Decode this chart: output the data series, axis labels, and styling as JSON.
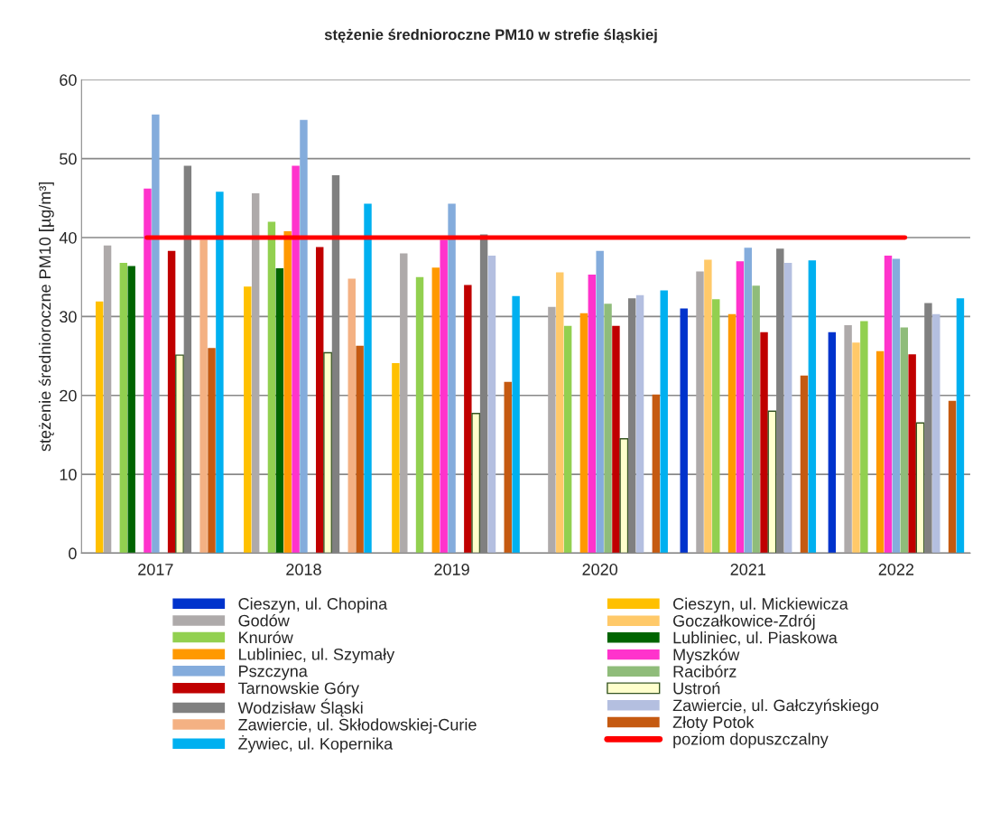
{
  "chart_data": {
    "type": "bar",
    "title": "stężenie średnioroczne PM10 w strefie śląskiej",
    "ylabel": "stężenie średnioroczne PM10 [µg/m³]",
    "categories": [
      "2017",
      "2018",
      "2019",
      "2020",
      "2021",
      "2022"
    ],
    "ylim": [
      0,
      60
    ],
    "yticks": [
      0,
      10,
      20,
      30,
      40,
      50,
      60
    ],
    "grid": "y",
    "legend": "bottom",
    "series": [
      {
        "name": "Cieszyn, ul. Chopina",
        "color": "#0033cc",
        "values": [
          null,
          null,
          null,
          null,
          31.0,
          28.0
        ]
      },
      {
        "name": "Cieszyn, ul. Mickiewicza",
        "color": "#ffc000",
        "values": [
          31.9,
          33.8,
          24.1,
          null,
          null,
          null
        ]
      },
      {
        "name": "Godów",
        "color": "#aeaaaa",
        "values": [
          39.0,
          45.6,
          38.0,
          31.2,
          35.7,
          28.9
        ]
      },
      {
        "name": "Goczałkowice-Zdrój",
        "color": "#ffc969",
        "values": [
          null,
          null,
          null,
          35.6,
          37.2,
          26.7
        ]
      },
      {
        "name": "Knurów",
        "color": "#92d050",
        "values": [
          36.8,
          42.0,
          35.0,
          28.8,
          32.2,
          29.4
        ]
      },
      {
        "name": "Lubliniec, ul. Piaskowa",
        "color": "#006400",
        "values": [
          36.4,
          36.1,
          null,
          null,
          null,
          null
        ]
      },
      {
        "name": "Lubliniec, ul. Szymały",
        "color": "#ff9900",
        "values": [
          null,
          40.8,
          36.2,
          30.4,
          30.3,
          25.6
        ]
      },
      {
        "name": "Myszków",
        "color": "#ff33cc",
        "values": [
          46.2,
          49.1,
          39.7,
          35.3,
          37.0,
          37.7
        ]
      },
      {
        "name": "Pszczyna",
        "color": "#84acdc",
        "values": [
          55.6,
          54.9,
          44.3,
          38.3,
          38.7,
          37.3
        ]
      },
      {
        "name": "Racibórz",
        "color": "#8fbc7a",
        "values": [
          null,
          null,
          null,
          31.6,
          33.9,
          28.6
        ]
      },
      {
        "name": "Tarnowskie Góry",
        "color": "#c00000",
        "values": [
          38.3,
          38.8,
          34.0,
          28.8,
          28.0,
          25.2
        ]
      },
      {
        "name": "Ustroń",
        "color": "#ffffcc",
        "values": [
          25.1,
          25.4,
          17.7,
          14.5,
          18.0,
          16.5
        ]
      },
      {
        "name": "Wodzisław Śląski",
        "color": "#808080",
        "values": [
          49.1,
          47.9,
          40.4,
          32.3,
          38.6,
          31.7
        ]
      },
      {
        "name": "Zawiercie, ul. Gałczyńskiego",
        "color": "#b4bfe0",
        "values": [
          null,
          null,
          37.7,
          32.7,
          36.8,
          30.3
        ]
      },
      {
        "name": "Zawiercie, ul. Skłodowskiej-Curie",
        "color": "#f4b183",
        "values": [
          39.7,
          34.8,
          null,
          null,
          null,
          null
        ]
      },
      {
        "name": "Złoty Potok",
        "color": "#c55a11",
        "values": [
          26.0,
          26.3,
          21.7,
          20.1,
          22.5,
          19.3
        ]
      },
      {
        "name": "Żywiec, ul. Kopernika",
        "color": "#00b0f0",
        "values": [
          45.8,
          44.3,
          32.6,
          33.3,
          37.1,
          32.3
        ]
      }
    ],
    "ref_lines": [
      {
        "axis": "y",
        "value": 40,
        "label": "poziom dopuszczalny",
        "color": "#ff0000"
      }
    ]
  }
}
